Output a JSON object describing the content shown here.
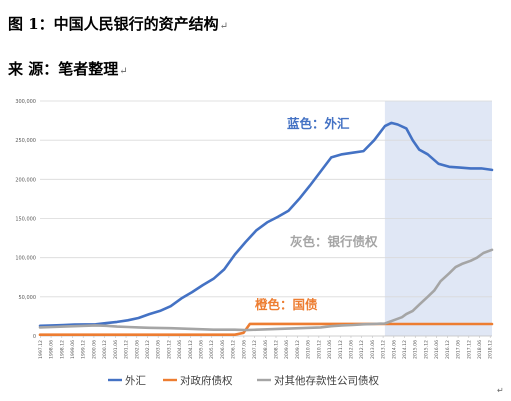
{
  "header": {
    "line1": "图 1：中国人民银行的资产结构",
    "line2": "来 源：笔者整理",
    "para_mark": "↵"
  },
  "chart_data": {
    "type": "line",
    "title": "",
    "xlabel": "",
    "ylabel": "",
    "ylim": [
      0,
      300000
    ],
    "yticks": [
      0,
      50000,
      100000,
      150000,
      200000,
      250000,
      300000
    ],
    "ytick_labels": [
      "0",
      "50,000",
      "100,000",
      "150,000",
      "200,000",
      "250,000",
      "300,000"
    ],
    "x_tick_labels": [
      "1997.12",
      "1998.06",
      "1998.12",
      "1999.06",
      "1999.12",
      "2000.06",
      "2000.12",
      "2001.06",
      "2001.12",
      "2002.06",
      "2002.12",
      "2003.06",
      "2003.12",
      "2004.06",
      "2004.12",
      "2005.06",
      "2005.12",
      "2006.06",
      "2006.12",
      "2007.06",
      "2007.12",
      "2008.06",
      "2008.12",
      "2009.06",
      "2009.12",
      "2010.06",
      "2010.12",
      "2011.06",
      "2011.12",
      "2012.06",
      "2012.12",
      "2013.06",
      "2013.12",
      "2014.06",
      "2014.12",
      "2015.06",
      "2015.12",
      "2016.06",
      "2016.12",
      "2017.06",
      "2017.12",
      "2018.06",
      "2018.12"
    ],
    "x_range": [
      1997.9,
      2019.0
    ],
    "shaded_region": [
      2014.0,
      2019.0
    ],
    "grid": "horizontal",
    "legend_position": "bottom",
    "series": [
      {
        "name": "外汇",
        "color": "#4472c4",
        "x": [
          1997.9,
          1998.5,
          1999.0,
          1999.5,
          2000.0,
          2000.5,
          2001.0,
          2001.5,
          2002.0,
          2002.5,
          2003.0,
          2003.5,
          2004.0,
          2004.5,
          2005.0,
          2005.5,
          2006.0,
          2006.5,
          2007.0,
          2007.5,
          2008.0,
          2008.5,
          2009.0,
          2009.5,
          2010.0,
          2010.5,
          2011.0,
          2011.5,
          2012.0,
          2012.5,
          2013.0,
          2013.5,
          2014.0,
          2014.3,
          2014.6,
          2015.0,
          2015.3,
          2015.6,
          2016.0,
          2016.5,
          2017.0,
          2017.5,
          2018.0,
          2018.5,
          2019.0
        ],
        "y": [
          13000,
          13500,
          14000,
          14500,
          14800,
          15000,
          16500,
          18000,
          20000,
          23000,
          28000,
          32000,
          38000,
          48000,
          56000,
          65000,
          73000,
          85000,
          104000,
          120000,
          135000,
          145000,
          152000,
          160000,
          175000,
          192000,
          210000,
          228000,
          232000,
          234000,
          236000,
          250000,
          268000,
          272000,
          270000,
          265000,
          250000,
          238000,
          232000,
          220000,
          216000,
          215000,
          214000,
          214000,
          212000
        ]
      },
      {
        "name": "对政府债权",
        "color": "#ed7d31",
        "x": [
          1997.9,
          1999.0,
          2000.0,
          2001.0,
          2002.0,
          2003.0,
          2004.0,
          2005.0,
          2006.0,
          2007.0,
          2007.4,
          2007.7,
          2008.0,
          2009.0,
          2010.0,
          2011.0,
          2012.0,
          2013.0,
          2014.0,
          2015.0,
          2016.0,
          2017.0,
          2018.0,
          2019.0
        ],
        "y": [
          1600,
          1600,
          1600,
          1600,
          1600,
          1600,
          1600,
          1600,
          1600,
          1600,
          4000,
          15500,
          15500,
          15500,
          15500,
          15500,
          15500,
          15500,
          15300,
          15300,
          15300,
          15300,
          15300,
          15300
        ]
      },
      {
        "name": "对其他存款性公司债权",
        "color": "#a5a5a5",
        "x": [
          1997.9,
          1998.5,
          1999.0,
          1999.5,
          2000.0,
          2000.5,
          2001.0,
          2001.5,
          2002.0,
          2002.5,
          2003.0,
          2004.0,
          2005.0,
          2006.0,
          2007.0,
          2007.5,
          2008.0,
          2008.5,
          2009.0,
          2010.0,
          2011.0,
          2011.5,
          2012.0,
          2012.5,
          2013.0,
          2013.5,
          2014.0,
          2014.4,
          2014.8,
          2015.0,
          2015.3,
          2015.6,
          2016.0,
          2016.3,
          2016.6,
          2017.0,
          2017.3,
          2017.6,
          2018.0,
          2018.3,
          2018.6,
          2019.0
        ],
        "y": [
          11000,
          11500,
          12000,
          12500,
          13000,
          13500,
          13000,
          12000,
          11500,
          11000,
          10500,
          10000,
          9000,
          8000,
          8000,
          7500,
          8000,
          8500,
          9000,
          10000,
          11000,
          12500,
          13500,
          14000,
          15000,
          15500,
          16000,
          20000,
          24000,
          28000,
          32000,
          40000,
          50000,
          58000,
          70000,
          80000,
          88000,
          92000,
          96000,
          100000,
          106000,
          110000
        ]
      }
    ],
    "annotations": [
      {
        "text": "蓝色：外汇",
        "color": "#4472c4"
      },
      {
        "text": "灰色：银行债权",
        "color": "#a5a5a5"
      },
      {
        "text": "橙色：国债",
        "color": "#ed7d31"
      }
    ]
  }
}
